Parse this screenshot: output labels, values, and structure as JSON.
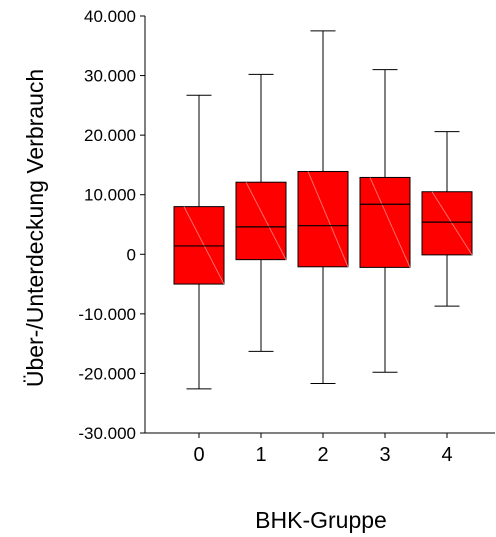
{
  "chart_data": {
    "type": "boxplot",
    "xlabel": "BHK-Gruppe",
    "ylabel": "Über-/Unterdeckung Verbrauch",
    "ylim": [
      -30000,
      40000
    ],
    "yticks": [
      -30000,
      -20000,
      -10000,
      0,
      10000,
      20000,
      30000,
      40000
    ],
    "ytick_labels": [
      "-30.000",
      "-20.000",
      "-10.000",
      "0",
      "10.000",
      "20.000",
      "30.000",
      "40.000"
    ],
    "categories": [
      "0",
      "1",
      "2",
      "3",
      "4"
    ],
    "grid": false,
    "box_color": "#ff0000",
    "boxes": [
      {
        "category": "0",
        "whisker_low": -22600,
        "q1": -5000,
        "median": 1400,
        "q3": 8000,
        "whisker_high": 26700
      },
      {
        "category": "1",
        "whisker_low": -16300,
        "q1": -900,
        "median": 4600,
        "q3": 12100,
        "whisker_high": 30200
      },
      {
        "category": "2",
        "whisker_low": -21700,
        "q1": -2100,
        "median": 4800,
        "q3": 13900,
        "whisker_high": 37500
      },
      {
        "category": "3",
        "whisker_low": -19800,
        "q1": -2200,
        "median": 8400,
        "q3": 12900,
        "whisker_high": 31000
      },
      {
        "category": "4",
        "whisker_low": -8700,
        "q1": -100,
        "median": 5400,
        "q3": 10500,
        "whisker_high": 20600
      }
    ]
  }
}
